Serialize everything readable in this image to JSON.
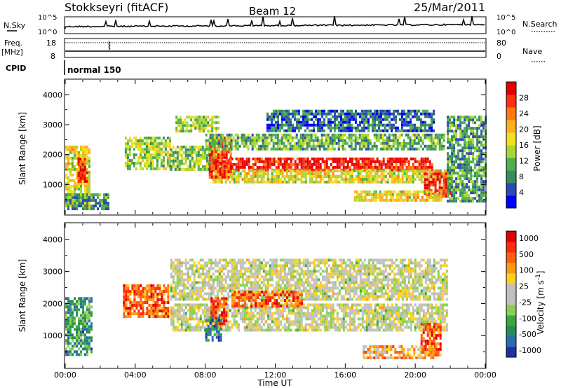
{
  "header": {
    "station": "Stokkseyri (fitACF)",
    "beam": "Beam 12",
    "date": "25/Mar/2011"
  },
  "strips": {
    "nsky_label": "N.Sky",
    "nsky_top": "10^5",
    "nsky_bottom": "10^0",
    "nsearch_label": "N.Search",
    "nsearch_top": "10^5",
    "nsearch_bottom": "10^0",
    "freq_label": "Freq.",
    "freq_unit": "[MHz]",
    "freq_ticks": [
      "18",
      "8"
    ],
    "nave_label": "Nave",
    "nave_ticks": [
      "80",
      "0"
    ],
    "cpid_label": "CPID",
    "cpid_value": "normal 150"
  },
  "chart_data": [
    {
      "type": "heatmap",
      "name": "Power panel",
      "ylabel": "Slant Range [km]",
      "xlabel": "",
      "xlim": [
        0,
        24
      ],
      "ylim": [
        0,
        4500
      ],
      "yticks": [
        "1000",
        "2000",
        "3000",
        "4000"
      ],
      "colorbar": {
        "label": "Power [dB]",
        "ticks": [
          "4",
          "8",
          "12",
          "16",
          "20",
          "24",
          "28"
        ],
        "colors": [
          "#0000ff",
          "#2a4ab8",
          "#3a8a5a",
          "#4fb04f",
          "#a8d830",
          "#f0e020",
          "#ffb020",
          "#ff7a10",
          "#ff3010",
          "#e80000"
        ]
      },
      "bands": [
        {
          "t0": 0.0,
          "t1": 1.4,
          "r0": 300,
          "r1": 2300,
          "level": 0.55
        },
        {
          "t0": 0.7,
          "t1": 1.3,
          "r0": 1100,
          "r1": 1900,
          "level": 0.9
        },
        {
          "t0": 3.4,
          "t1": 6.0,
          "r0": 1500,
          "r1": 2600,
          "level": 0.45
        },
        {
          "t0": 6.0,
          "t1": 8.7,
          "r0": 1500,
          "r1": 2300,
          "level": 0.4
        },
        {
          "t0": 8.4,
          "t1": 21.0,
          "r0": 1500,
          "r1": 1900,
          "level": 0.92
        },
        {
          "t0": 8.4,
          "t1": 21.8,
          "r0": 1100,
          "r1": 1500,
          "level": 0.55
        },
        {
          "t0": 8.2,
          "t1": 9.5,
          "r0": 1200,
          "r1": 2600,
          "level": 0.85
        },
        {
          "t0": 20.5,
          "t1": 22.0,
          "r0": 600,
          "r1": 1400,
          "level": 0.9
        },
        {
          "t0": 8.0,
          "t1": 21.6,
          "r0": 2200,
          "r1": 2700,
          "level": 0.35
        },
        {
          "t0": 11.5,
          "t1": 21.0,
          "r0": 2800,
          "r1": 3500,
          "level": 0.2
        },
        {
          "t0": 6.3,
          "t1": 8.8,
          "r0": 2800,
          "r1": 3300,
          "level": 0.45
        },
        {
          "t0": 0.0,
          "t1": 2.5,
          "r0": 150,
          "r1": 700,
          "level": 0.3
        },
        {
          "t0": 16.5,
          "t1": 21.5,
          "r0": 450,
          "r1": 800,
          "level": 0.55
        },
        {
          "t0": 21.8,
          "t1": 24.0,
          "r0": 400,
          "r1": 3300,
          "level": 0.3
        }
      ]
    },
    {
      "type": "heatmap",
      "name": "Velocity panel",
      "ylabel": "Slant Range [km]",
      "xlabel": "Time UT",
      "xlim": [
        0,
        24
      ],
      "ylim": [
        0,
        4500
      ],
      "xticks": [
        "00:00",
        "04:00",
        "08:00",
        "12:00",
        "16:00",
        "20:00",
        "00:00"
      ],
      "yticks": [
        "1000",
        "2000",
        "3000",
        "4000"
      ],
      "colorbar": {
        "label": "Velocity [m s^-1]",
        "ticks": [
          "1000",
          "500",
          "100",
          "25",
          "-25",
          "-100",
          "-500",
          "-1000"
        ],
        "colors": [
          "#2030a0",
          "#2a6ab8",
          "#2a8a5a",
          "#3aa83a",
          "#8ad050",
          "#c0c0c0",
          "#c0c0c0",
          "#ffd020",
          "#ff9a10",
          "#ff6010",
          "#ff2a10",
          "#e00000"
        ]
      },
      "bands": [
        {
          "t0": 6.0,
          "t1": 21.8,
          "r0": 1200,
          "r1": 2000,
          "level": 0.5
        },
        {
          "t0": 6.0,
          "t1": 21.8,
          "r0": 2100,
          "r1": 3400,
          "level": 0.5
        },
        {
          "t0": 3.3,
          "t1": 5.9,
          "r0": 1600,
          "r1": 2600,
          "level": 0.8
        },
        {
          "t0": 8.3,
          "t1": 9.2,
          "r0": 1300,
          "r1": 2200,
          "level": 0.85
        },
        {
          "t0": 8.0,
          "t1": 8.9,
          "r0": 900,
          "r1": 1600,
          "level": 0.2
        },
        {
          "t0": 0.0,
          "t1": 1.5,
          "r0": 400,
          "r1": 2200,
          "level": 0.25
        },
        {
          "t0": 20.3,
          "t1": 21.5,
          "r0": 400,
          "r1": 1400,
          "level": 0.82
        },
        {
          "t0": 17.0,
          "t1": 21.0,
          "r0": 300,
          "r1": 700,
          "level": 0.68
        },
        {
          "t0": 9.5,
          "t1": 13.5,
          "r0": 1900,
          "r1": 2400,
          "level": 0.8
        }
      ]
    }
  ],
  "colors": {
    "axis": "#000000",
    "background": "#ffffff"
  }
}
